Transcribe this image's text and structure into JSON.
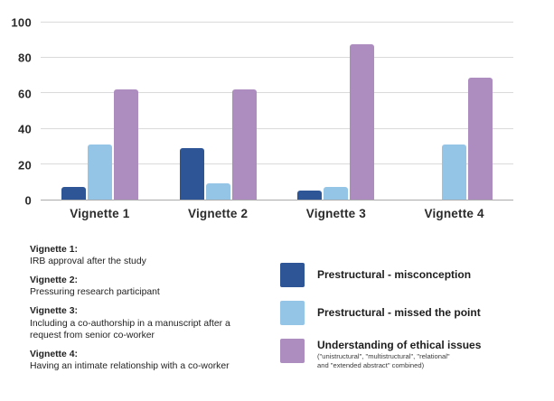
{
  "chart_data": {
    "type": "bar",
    "title": "",
    "xlabel": "",
    "ylabel": "",
    "ylim": [
      0,
      100
    ],
    "yticks": [
      0,
      20,
      40,
      60,
      80,
      100
    ],
    "grid": true,
    "categories": [
      "Vignette 1",
      "Vignette 2",
      "Vignette 3",
      "Vignette 4"
    ],
    "series": [
      {
        "name": "Prestructural - misconception",
        "color": "#2e5596",
        "values": [
          7,
          29,
          5,
          0
        ]
      },
      {
        "name": "Prestructural - missed the point",
        "color": "#95c5e6",
        "values": [
          31,
          9,
          7,
          31
        ]
      },
      {
        "name": "Understanding of ethical issues",
        "color": "#ad8cc0",
        "values": [
          62,
          62,
          88,
          69
        ]
      }
    ],
    "legend": {
      "position": "bottom-right",
      "items": [
        {
          "label": "Prestructural - misconception",
          "color": "#2e5596",
          "sublabel": ""
        },
        {
          "label": "Prestructural - missed the point",
          "color": "#95c5e6",
          "sublabel": ""
        },
        {
          "label": "Understanding of ethical issues",
          "color": "#ad8cc0",
          "sublabel": "(\"unistructural\", \"multistructural\", \"relational\"\nand \"extended abstract\" combined)"
        }
      ]
    }
  },
  "footnotes": [
    {
      "heading": "Vignette 1:",
      "text": "IRB approval after the study"
    },
    {
      "heading": "Vignette 2:",
      "text": "Pressuring research participant"
    },
    {
      "heading": "Vignette 3:",
      "text": "Including a co-authorship in a manuscript after a request from senior co-worker"
    },
    {
      "heading": "Vignette 4:",
      "text": "Having an intimate relationship with a co-worker"
    }
  ]
}
